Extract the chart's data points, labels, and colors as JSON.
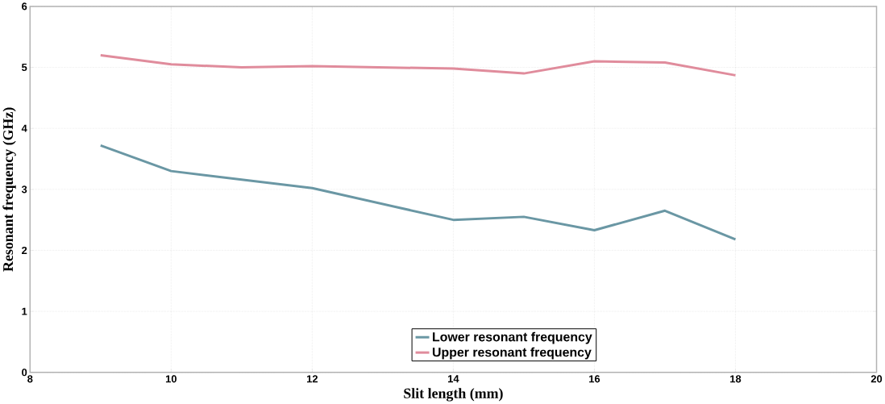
{
  "chart_data": {
    "type": "line",
    "xlabel": "Slit length (mm)",
    "ylabel": "Resonant frequency (GHz)",
    "xlim": [
      8,
      20
    ],
    "xticks": [
      8,
      10,
      12,
      14,
      16,
      18,
      20
    ],
    "ylim": [
      0,
      6
    ],
    "yticks": [
      0,
      1,
      2,
      3,
      4,
      5,
      6
    ],
    "grid": true,
    "legend": "bottom",
    "marker": "none",
    "line_style": "solid",
    "series": [
      {
        "name": "Lower resonant frequency",
        "color": "#6a97a4",
        "x": [
          9,
          10,
          12,
          14,
          15,
          16,
          17,
          18
        ],
        "values": [
          3.72,
          3.3,
          3.02,
          2.5,
          2.55,
          2.33,
          2.65,
          2.18
        ]
      },
      {
        "name": "Upper resonant frequency",
        "color": "#e08c9c",
        "x": [
          9,
          10,
          11,
          12,
          14,
          15,
          16,
          17,
          18
        ],
        "values": [
          5.2,
          5.05,
          5.0,
          5.02,
          4.98,
          4.9,
          5.1,
          5.08,
          4.87
        ]
      }
    ]
  }
}
